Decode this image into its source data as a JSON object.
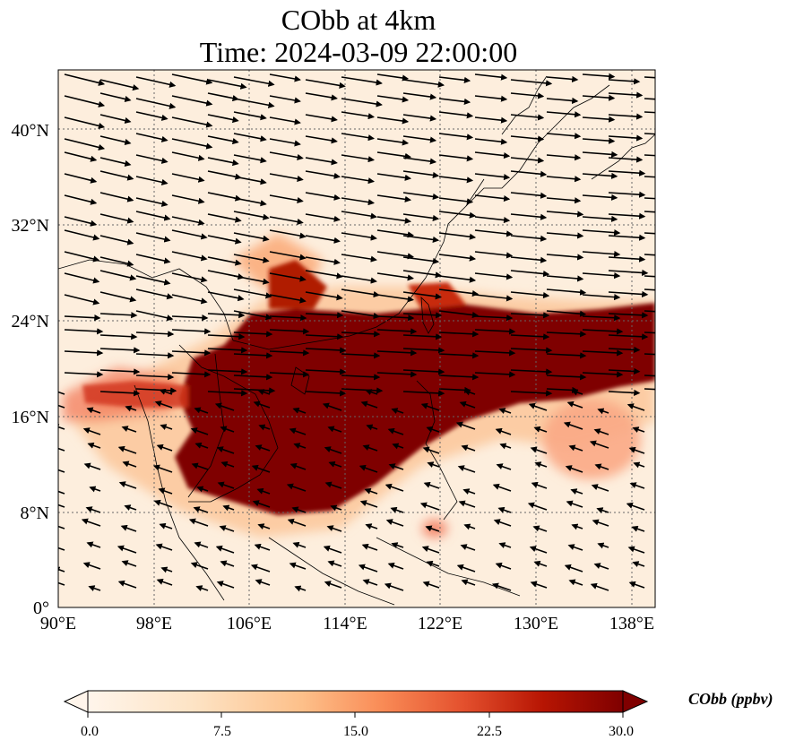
{
  "title": {
    "line1": "CObb at 4km",
    "line2": "Time: 2024-03-09 22:00:00"
  },
  "map": {
    "lon_ticks": [
      "90°E",
      "98°E",
      "106°E",
      "114°E",
      "122°E",
      "130°E",
      "138°E"
    ],
    "lat_ticks": [
      "0°",
      "8°N",
      "16°N",
      "24°N",
      "32°N",
      "40°N"
    ],
    "lon_range": [
      90,
      140
    ],
    "lat_range": [
      0,
      45
    ],
    "gridlines": true,
    "field": "CObb",
    "overlay": "wind vectors"
  },
  "colorbar": {
    "label": "CObb (ppbv)",
    "ticks": [
      "0.0",
      "7.5",
      "15.0",
      "22.5",
      "30.0"
    ],
    "min": 0,
    "max": 30,
    "extend": "both",
    "colormap": [
      "#fff5eb",
      "#fdd9ae",
      "#fca264",
      "#e8512c",
      "#b01a04",
      "#7f0000"
    ]
  }
}
